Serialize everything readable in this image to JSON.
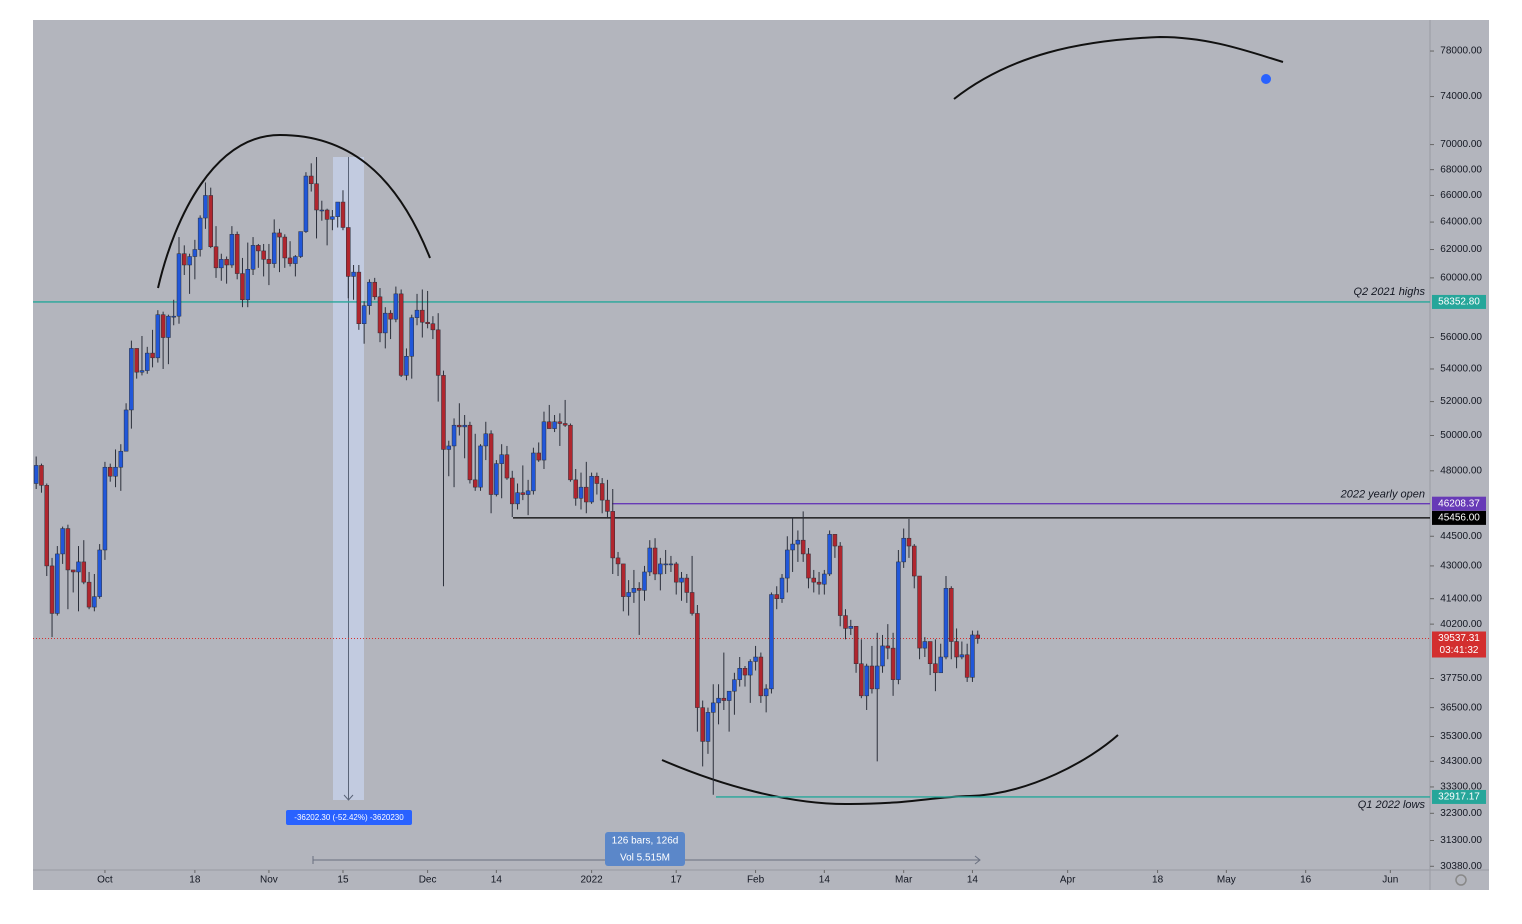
{
  "chart_data": {
    "type": "candlestick",
    "log_scale": true,
    "grid": false,
    "up_color": "#2157d9",
    "down_color": "#b0262e",
    "ylim": [
      30250,
      80850
    ],
    "xlim": [
      -0.6,
      263.5
    ],
    "yticks": [
      {
        "value": 78000,
        "label": "78000.00"
      },
      {
        "value": 74000,
        "label": "74000.00"
      },
      {
        "value": 70000,
        "label": "70000.00"
      },
      {
        "value": 68000,
        "label": "68000.00"
      },
      {
        "value": 66000,
        "label": "66000.00"
      },
      {
        "value": 64000,
        "label": "64000.00"
      },
      {
        "value": 62000,
        "label": "62000.00"
      },
      {
        "value": 60000,
        "label": "60000.00"
      },
      {
        "value": 56000,
        "label": "56000.00"
      },
      {
        "value": 54000,
        "label": "54000.00"
      },
      {
        "value": 52000,
        "label": "52000.00"
      },
      {
        "value": 50000,
        "label": "50000.00"
      },
      {
        "value": 48000,
        "label": "48000.00"
      },
      {
        "value": 44500,
        "label": "44500.00"
      },
      {
        "value": 43000,
        "label": "43000.00"
      },
      {
        "value": 41400,
        "label": "41400.00"
      },
      {
        "value": 40200,
        "label": "40200.00"
      },
      {
        "value": 37750,
        "label": "37750.00"
      },
      {
        "value": 36500,
        "label": "36500.00"
      },
      {
        "value": 35300,
        "label": "35300.00"
      },
      {
        "value": 34300,
        "label": "34300.00"
      },
      {
        "value": 33300,
        "label": "33300.00"
      },
      {
        "value": 32300,
        "label": "32300.00"
      },
      {
        "value": 31300,
        "label": "31300.00"
      },
      {
        "value": 30380,
        "label": "30380.00"
      }
    ],
    "xticks": [
      {
        "value": 13,
        "label": "Oct"
      },
      {
        "value": 30,
        "label": "18"
      },
      {
        "value": 44,
        "label": "Nov"
      },
      {
        "value": 58,
        "label": "15"
      },
      {
        "value": 74,
        "label": "Dec"
      },
      {
        "value": 87,
        "label": "14"
      },
      {
        "value": 105,
        "label": "2022"
      },
      {
        "value": 121,
        "label": "17"
      },
      {
        "value": 136,
        "label": "Feb"
      },
      {
        "value": 149,
        "label": "14"
      },
      {
        "value": 164,
        "label": "Mar"
      },
      {
        "value": 177,
        "label": "14"
      },
      {
        "value": 195,
        "label": "Apr"
      },
      {
        "value": 212,
        "label": "18"
      },
      {
        "value": 225,
        "label": "May"
      },
      {
        "value": 240,
        "label": "16"
      },
      {
        "value": 256,
        "label": "Jun"
      }
    ],
    "open": [
      47300,
      48300,
      47200,
      43000,
      40700,
      43600,
      44900,
      42800,
      42700,
      43200,
      42200,
      41000,
      41500,
      43800,
      48200,
      47700,
      48200,
      49100,
      51500,
      55300,
      53800,
      53900,
      55000,
      54700,
      57500,
      56000,
      57400,
      57400,
      61700,
      60900,
      61500,
      62000,
      64300,
      66000,
      62200,
      60700,
      61300,
      60900,
      63100,
      60300,
      58500,
      60600,
      62300,
      61900,
      61300,
      61000,
      63200,
      62900,
      61400,
      61000,
      61500,
      63300,
      67500,
      66900,
      64900,
      64900,
      64200,
      64400,
      65500,
      63600,
      60100,
      60400,
      56900,
      58100,
      59700,
      58700,
      56300,
      57600,
      57200,
      58900,
      53600,
      54800,
      57300,
      57800,
      57000,
      56900,
      56500,
      53600,
      49200,
      49400,
      50600,
      50500,
      50600,
      47500,
      47100,
      49400,
      50100,
      46700,
      48400,
      48900,
      47600,
      46200,
      46800,
      46700,
      46900,
      49000,
      48600,
      50800,
      50400,
      50800,
      50700,
      50600,
      47500,
      46500,
      47100,
      46300,
      47700,
      47300,
      46400,
      45800,
      43400,
      43100,
      41500,
      41700,
      41900,
      41800,
      42700,
      43900,
      42600,
      43100,
      43100,
      43100,
      42200,
      42400,
      41700,
      40700,
      36500,
      35100,
      36300,
      36700,
      36900,
      36800,
      37200,
      37700,
      38200,
      37900,
      38500,
      38700,
      37000,
      37300,
      41600,
      41400,
      42400,
      43800,
      44100,
      44300,
      43600,
      42400,
      42200,
      42100,
      42600,
      44600,
      44000,
      40600,
      40000,
      40100,
      38400,
      37000,
      38300,
      37300,
      38300,
      39200,
      39100,
      37700,
      43200,
      44400,
      44000,
      42500,
      39100,
      39400,
      38400,
      38000,
      38700,
      41900,
      39400,
      38700,
      38800,
      37800,
      39700
    ],
    "high": [
      48800,
      48400,
      47300,
      43400,
      44000,
      45000,
      45100,
      42800,
      44000,
      44300,
      42700,
      42600,
      44100,
      48500,
      48400,
      49200,
      49500,
      51900,
      55800,
      55300,
      56100,
      55400,
      56500,
      57800,
      57700,
      57500,
      58500,
      62900,
      62300,
      61700,
      62700,
      64500,
      67000,
      66600,
      63700,
      61700,
      61500,
      63700,
      63300,
      61400,
      62500,
      62900,
      62400,
      62400,
      62400,
      64200,
      63500,
      63100,
      62600,
      61600,
      63300,
      67800,
      68500,
      69000,
      65600,
      65000,
      64900,
      65500,
      66400,
      63600,
      60900,
      60900,
      58400,
      59900,
      60000,
      59300,
      58000,
      57800,
      59400,
      59200,
      55300,
      57500,
      58900,
      59200,
      59100,
      57400,
      57600,
      53900,
      49700,
      51000,
      51900,
      51200,
      50800,
      50100,
      49500,
      50800,
      50300,
      48600,
      49500,
      49400,
      48000,
      47300,
      48300,
      47500,
      49300,
      49600,
      51400,
      51800,
      51200,
      51300,
      52100,
      50700,
      48100,
      47900,
      48500,
      47900,
      47900,
      47600,
      47500,
      47000,
      43700,
      43100,
      42300,
      42800,
      42200,
      43000,
      44300,
      44400,
      43400,
      43800,
      43500,
      43200,
      42700,
      42600,
      43500,
      41100,
      36800,
      36500,
      37500,
      37500,
      38900,
      37200,
      38000,
      38700,
      38300,
      38600,
      39200,
      38900,
      37500,
      41700,
      42000,
      42600,
      44500,
      45500,
      44800,
      45800,
      43900,
      42800,
      42700,
      42800,
      44800,
      44600,
      44200,
      40900,
      40400,
      40100,
      39500,
      38400,
      39200,
      39800,
      39700,
      40200,
      39800,
      43800,
      44900,
      45400,
      44100,
      42500,
      39600,
      39400,
      39500,
      39300,
      42500,
      42000,
      40000,
      39400,
      39300,
      39900,
      39900
    ],
    "low": [
      47000,
      46800,
      42500,
      39600,
      40600,
      43100,
      40900,
      41700,
      40800,
      42100,
      40900,
      40800,
      41400,
      43300,
      47400,
      47100,
      46900,
      49100,
      50400,
      53400,
      53600,
      53700,
      54100,
      54400,
      54000,
      54300,
      56800,
      56900,
      60200,
      58900,
      59900,
      61500,
      63500,
      62100,
      60000,
      59800,
      59600,
      60700,
      59900,
      58000,
      58000,
      60200,
      60700,
      60100,
      59500,
      60700,
      60400,
      60700,
      60800,
      60100,
      61400,
      63200,
      66300,
      62800,
      64100,
      62300,
      63400,
      63600,
      63400,
      58600,
      58500,
      56500,
      55600,
      57500,
      58500,
      55700,
      55300,
      55900,
      57000,
      53500,
      53300,
      53400,
      56800,
      56000,
      56600,
      55900,
      52000,
      42000,
      47700,
      47100,
      50000,
      48700,
      47300,
      46900,
      46900,
      48600,
      45700,
      46600,
      46500,
      47500,
      45500,
      45900,
      46400,
      45600,
      46700,
      48500,
      48100,
      50400,
      50200,
      49400,
      50500,
      47400,
      46100,
      45900,
      45700,
      46200,
      46700,
      45700,
      45500,
      42600,
      42500,
      40800,
      40600,
      41200,
      39700,
      41300,
      42500,
      42300,
      41800,
      42600,
      42700,
      41600,
      41300,
      41200,
      40600,
      35500,
      34100,
      34600,
      33000,
      35800,
      36400,
      35500,
      36200,
      37400,
      37400,
      36700,
      38100,
      36700,
      36300,
      37100,
      40900,
      41200,
      41700,
      42700,
      43200,
      43200,
      41900,
      41700,
      41600,
      41600,
      42500,
      43400,
      40100,
      39500,
      39700,
      38000,
      36900,
      36400,
      37100,
      34300,
      38000,
      38600,
      37000,
      37500,
      42900,
      43400,
      41900,
      38600,
      38700,
      37900,
      37200,
      38000,
      38600,
      38600,
      38200,
      38600,
      37600,
      37600,
      39300
    ],
    "close": [
      48300,
      47200,
      43000,
      40700,
      43600,
      44900,
      42800,
      42700,
      43200,
      42200,
      41000,
      41500,
      43800,
      48200,
      47700,
      48200,
      49100,
      51500,
      55300,
      53800,
      53900,
      55000,
      54700,
      57500,
      56000,
      57400,
      57400,
      61700,
      60900,
      61500,
      62000,
      64300,
      66000,
      62200,
      60700,
      61300,
      60900,
      63100,
      60300,
      58500,
      60600,
      62300,
      61900,
      61300,
      61000,
      63200,
      62900,
      61400,
      61000,
      61500,
      63300,
      67500,
      66900,
      64900,
      64900,
      64200,
      64400,
      65500,
      63600,
      60100,
      60400,
      56900,
      58100,
      59700,
      58700,
      56300,
      57600,
      57200,
      58900,
      53600,
      54800,
      57300,
      57800,
      57000,
      56900,
      56500,
      53600,
      49200,
      49400,
      50600,
      50500,
      50600,
      47500,
      47100,
      49400,
      50100,
      46700,
      48400,
      48900,
      47600,
      46200,
      46800,
      46700,
      46900,
      49000,
      48600,
      50800,
      50400,
      50800,
      50700,
      50600,
      47500,
      46500,
      47100,
      46300,
      47700,
      47300,
      46400,
      45800,
      43400,
      43100,
      41500,
      41700,
      41900,
      41800,
      42700,
      43900,
      42600,
      43100,
      43100,
      43100,
      42200,
      42400,
      41700,
      40700,
      36500,
      35100,
      36300,
      36700,
      36900,
      36800,
      37200,
      37700,
      38200,
      37900,
      38500,
      38700,
      37000,
      37300,
      41600,
      41400,
      42400,
      43800,
      44100,
      44300,
      43600,
      42400,
      42200,
      42100,
      42600,
      44600,
      44000,
      40600,
      40000,
      40100,
      38400,
      37000,
      38300,
      37300,
      38300,
      39200,
      39100,
      37700,
      43200,
      44400,
      44000,
      42500,
      39100,
      39400,
      38400,
      38000,
      38700,
      41900,
      39400,
      38700,
      38800,
      37800,
      39700,
      39537.31
    ],
    "levels": [
      {
        "name": "Q2 2021 highs",
        "value": 58352.8,
        "label": "58352.80",
        "color": "#26a69a"
      },
      {
        "name": "2022 yearly open",
        "value": 46208.37,
        "label": "46208.37",
        "color": "#673ab7"
      },
      {
        "value": 45456,
        "label": "45456.00",
        "color": "#000000"
      },
      {
        "name": "Q1 2022 lows",
        "value": 32917.17,
        "label": "32917.17",
        "color": "#26a69a"
      }
    ],
    "last_price": {
      "value": 39537.31,
      "label": "39537.31",
      "countdown": "03:41:32",
      "color": "#d32f2f"
    },
    "price_measure": "-36202.30 (-52.42%) -3620230",
    "date_measure": [
      "126 bars, 126d",
      "Vol 5.515M"
    ]
  }
}
